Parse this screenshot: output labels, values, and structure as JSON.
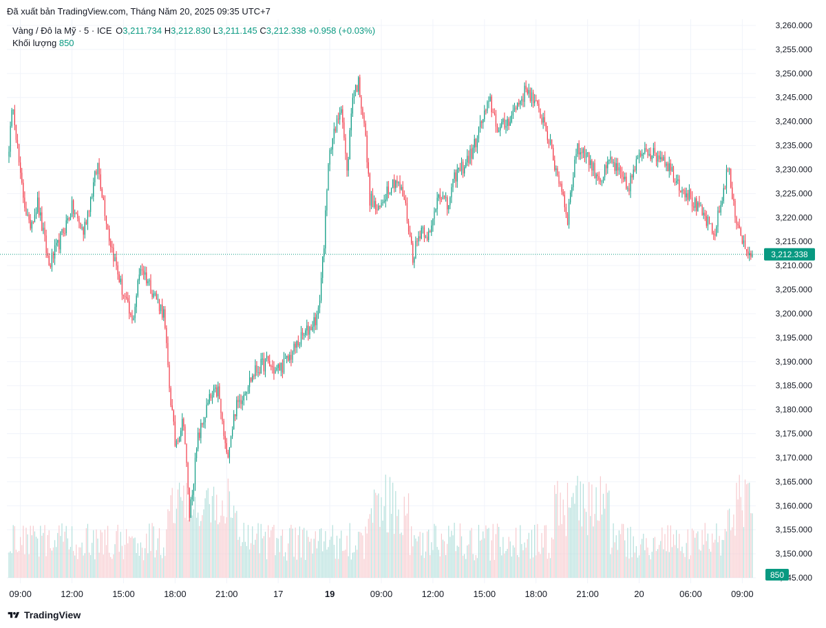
{
  "header": {
    "published": "Đã xuất bản TradingView.com, Tháng Năm 20, 2025 09:35 UTC+7"
  },
  "legend": {
    "symbol": "Vàng / Đô la Mỹ · 5 · ICE",
    "o_label": "O",
    "o_value": "3,211.734",
    "h_label": "H",
    "h_value": "3,212.830",
    "l_label": "L",
    "l_value": "3,211.145",
    "c_label": "C",
    "c_value": "3,212.338",
    "change": "+0.958 (+0.03%)",
    "volume_label": "Khối lượng",
    "volume_value": "850"
  },
  "footer": {
    "brand": "TradingView",
    "logo_icon": "tradingview-logo-icon"
  },
  "colors": {
    "up": "#089981",
    "down": "#f23645",
    "up_volume": "#b2dfdb",
    "down_volume": "#f7c9cd",
    "grid": "#f0f3fa",
    "axis_text": "#131722",
    "price_line": "#089981"
  },
  "chart_data": {
    "type": "candlestick",
    "symbol": "XAUUSD",
    "interval": "5",
    "last_price": 3212.338,
    "last_price_label": "3,212.338",
    "last_volume_label": "850",
    "ylim": [
      3145,
      3262
    ],
    "y_ticks": [
      3260,
      3255,
      3250,
      3245,
      3240,
      3235,
      3230,
      3225,
      3220,
      3215,
      3210,
      3205,
      3200,
      3195,
      3190,
      3185,
      3180,
      3175,
      3170,
      3165,
      3160,
      3155,
      3150,
      3145
    ],
    "y_tick_labels": [
      "3,260.000",
      "3,255.000",
      "3,250.000",
      "3,245.000",
      "3,240.000",
      "3,235.000",
      "3,230.000",
      "3,225.000",
      "3,220.000",
      "3,215.000",
      "3,210.000",
      "3,205.000",
      "3,200.000",
      "3,195.000",
      "3,190.000",
      "3,185.000",
      "3,180.000",
      "3,175.000",
      "3,170.000",
      "3,165.000",
      "3,160.000",
      "3,155.000",
      "3,150.000",
      "3,145.000"
    ],
    "x_ticks": [
      {
        "label": "09:00",
        "bold": false
      },
      {
        "label": "12:00",
        "bold": false
      },
      {
        "label": "15:00",
        "bold": false
      },
      {
        "label": "18:00",
        "bold": false
      },
      {
        "label": "21:00",
        "bold": false
      },
      {
        "label": "17",
        "bold": false
      },
      {
        "label": "19",
        "bold": true
      },
      {
        "label": "09:00",
        "bold": false
      },
      {
        "label": "12:00",
        "bold": false
      },
      {
        "label": "15:00",
        "bold": false
      },
      {
        "label": "18:00",
        "bold": false
      },
      {
        "label": "21:00",
        "bold": false
      },
      {
        "label": "20",
        "bold": false
      },
      {
        "label": "06:00",
        "bold": false
      },
      {
        "label": "09:00",
        "bold": false
      }
    ],
    "x_tick_bar_index": [
      8,
      44,
      80,
      116,
      152,
      188,
      224,
      260,
      296,
      332,
      368,
      404,
      440,
      476,
      512
    ],
    "bar_count": 520,
    "anchors": [
      [
        0,
        3235
      ],
      [
        3,
        3244
      ],
      [
        8,
        3228
      ],
      [
        14,
        3218
      ],
      [
        20,
        3223
      ],
      [
        28,
        3210
      ],
      [
        34,
        3214
      ],
      [
        44,
        3222
      ],
      [
        52,
        3217
      ],
      [
        62,
        3231
      ],
      [
        70,
        3216
      ],
      [
        78,
        3206
      ],
      [
        86,
        3198
      ],
      [
        92,
        3210
      ],
      [
        100,
        3205
      ],
      [
        108,
        3200
      ],
      [
        112,
        3185
      ],
      [
        116,
        3173
      ],
      [
        122,
        3178
      ],
      [
        126,
        3158
      ],
      [
        132,
        3174
      ],
      [
        140,
        3182
      ],
      [
        146,
        3184
      ],
      [
        152,
        3170
      ],
      [
        158,
        3180
      ],
      [
        166,
        3185
      ],
      [
        172,
        3188
      ],
      [
        180,
        3190
      ],
      [
        186,
        3188
      ],
      [
        194,
        3190
      ],
      [
        202,
        3194
      ],
      [
        210,
        3197
      ],
      [
        216,
        3200
      ],
      [
        220,
        3215
      ],
      [
        224,
        3235
      ],
      [
        228,
        3238
      ],
      [
        232,
        3244
      ],
      [
        236,
        3229
      ],
      [
        240,
        3246
      ],
      [
        244,
        3248
      ],
      [
        248,
        3240
      ],
      [
        252,
        3224
      ],
      [
        258,
        3221
      ],
      [
        264,
        3226
      ],
      [
        270,
        3228
      ],
      [
        276,
        3224
      ],
      [
        282,
        3212
      ],
      [
        288,
        3218
      ],
      [
        294,
        3216
      ],
      [
        300,
        3226
      ],
      [
        306,
        3222
      ],
      [
        312,
        3229
      ],
      [
        318,
        3231
      ],
      [
        324,
        3234
      ],
      [
        330,
        3240
      ],
      [
        336,
        3244
      ],
      [
        342,
        3238
      ],
      [
        348,
        3240
      ],
      [
        356,
        3244
      ],
      [
        362,
        3247
      ],
      [
        368,
        3243
      ],
      [
        374,
        3240
      ],
      [
        380,
        3232
      ],
      [
        386,
        3226
      ],
      [
        390,
        3220
      ],
      [
        396,
        3234
      ],
      [
        402,
        3234
      ],
      [
        408,
        3230
      ],
      [
        414,
        3228
      ],
      [
        420,
        3232
      ],
      [
        426,
        3229
      ],
      [
        432,
        3226
      ],
      [
        438,
        3231
      ],
      [
        444,
        3235
      ],
      [
        450,
        3233
      ],
      [
        456,
        3233
      ],
      [
        462,
        3230
      ],
      [
        468,
        3227
      ],
      [
        474,
        3225
      ],
      [
        480,
        3222
      ],
      [
        486,
        3220
      ],
      [
        492,
        3216
      ],
      [
        498,
        3224
      ],
      [
        502,
        3231
      ],
      [
        506,
        3222
      ],
      [
        510,
        3218
      ],
      [
        514,
        3213
      ],
      [
        519,
        3212.338
      ]
    ]
  }
}
